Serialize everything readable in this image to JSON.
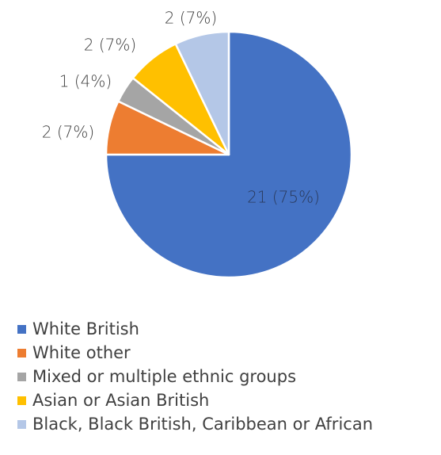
{
  "chart_data": {
    "type": "pie",
    "categories": [
      "White British",
      "White other",
      "Mixed or multiple ethnic groups",
      "Asian or Asian British",
      "Black, Black British, Caribbean or African"
    ],
    "values": [
      21,
      2,
      1,
      2,
      2
    ],
    "data_labels": [
      "21 (75%)",
      "2 (7%)",
      "1 (4%)",
      "2 (7%)",
      "2 (7%)"
    ],
    "colors": [
      "#4472C4",
      "#ED7D31",
      "#A5A5A5",
      "#FFC000",
      "#B4C7E7"
    ],
    "legend_position": "bottom",
    "title": ""
  }
}
